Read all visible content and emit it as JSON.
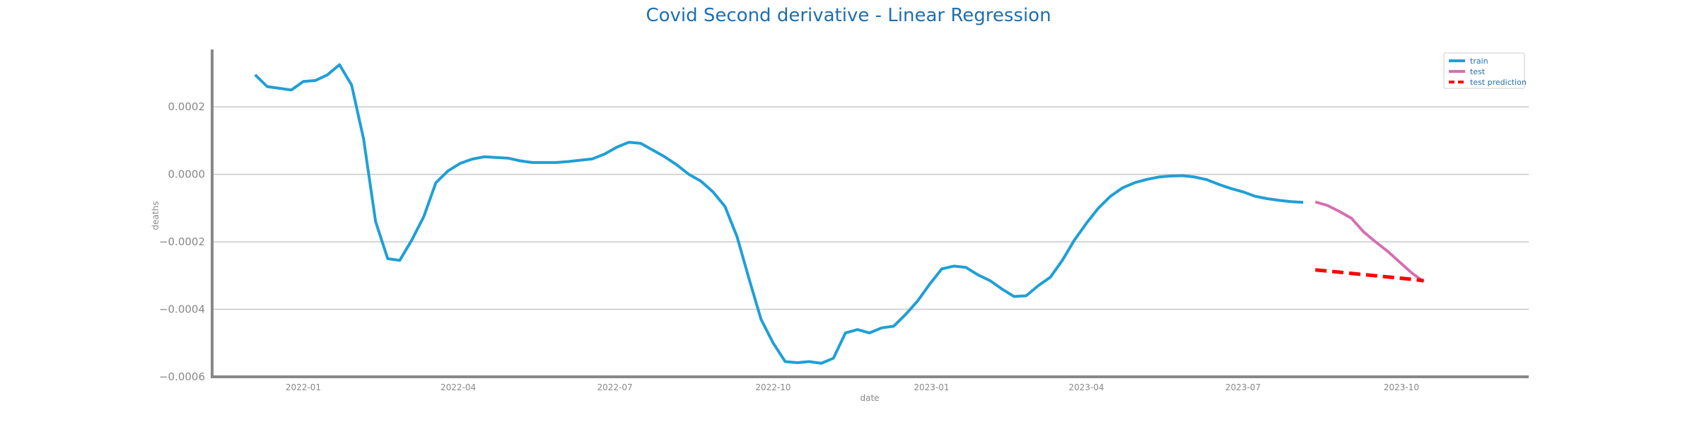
{
  "chart_data": {
    "type": "line",
    "title": "Covid Second derivative - Linear Regression",
    "xlabel": "date",
    "ylabel": "deaths",
    "x_ticks": [
      "2022-01",
      "2022-04",
      "2022-07",
      "2022-10",
      "2023-01",
      "2023-04",
      "2023-07",
      "2023-10"
    ],
    "y_ticks": [
      "0.0002",
      "0.0000",
      "−0.0002",
      "−0.0004",
      "−0.0006"
    ],
    "ylim": [
      -0.0006,
      0.00037
    ],
    "xlim": [
      "2021-11-09",
      "2023-12-14"
    ],
    "grid": "horizontal",
    "legend_position": "top-right",
    "colors": {
      "train": "#1f9fd6",
      "test": "#d66fb0",
      "test_prediction": "#ff0000",
      "title": "#1f6fb0",
      "axis_text": "#888888"
    },
    "series": [
      {
        "name": "train",
        "style": "solid",
        "points": [
          [
            "2021-12-04",
            0.000295
          ],
          [
            "2021-12-11",
            0.00026
          ],
          [
            "2021-12-18",
            0.000255
          ],
          [
            "2021-12-25",
            0.00025
          ],
          [
            "2022-01-01",
            0.000275
          ],
          [
            "2022-01-08",
            0.000278
          ],
          [
            "2022-01-15",
            0.000295
          ],
          [
            "2022-01-22",
            0.000325
          ],
          [
            "2022-01-29",
            0.000265
          ],
          [
            "2022-02-05",
            0.000105
          ],
          [
            "2022-02-12",
            -0.00014
          ],
          [
            "2022-02-19",
            -0.00025
          ],
          [
            "2022-02-26",
            -0.000255
          ],
          [
            "2022-03-05",
            -0.000195
          ],
          [
            "2022-03-12",
            -0.000125
          ],
          [
            "2022-03-19",
            -2.5e-05
          ],
          [
            "2022-03-26",
            1e-05
          ],
          [
            "2022-04-02",
            3.2e-05
          ],
          [
            "2022-04-09",
            4.5e-05
          ],
          [
            "2022-04-16",
            5.2e-05
          ],
          [
            "2022-04-23",
            5e-05
          ],
          [
            "2022-04-30",
            4.8e-05
          ],
          [
            "2022-05-07",
            4e-05
          ],
          [
            "2022-05-14",
            3.5e-05
          ],
          [
            "2022-05-21",
            3.5e-05
          ],
          [
            "2022-05-28",
            3.5e-05
          ],
          [
            "2022-06-04",
            3.8e-05
          ],
          [
            "2022-06-11",
            4.2e-05
          ],
          [
            "2022-06-18",
            4.6e-05
          ],
          [
            "2022-06-25",
            6e-05
          ],
          [
            "2022-07-02",
            8e-05
          ],
          [
            "2022-07-09",
            9.5e-05
          ],
          [
            "2022-07-16",
            9.2e-05
          ],
          [
            "2022-07-23",
            7.2e-05
          ],
          [
            "2022-07-30",
            5.2e-05
          ],
          [
            "2022-08-06",
            2.8e-05
          ],
          [
            "2022-08-13",
            0.0
          ],
          [
            "2022-08-20",
            -2e-05
          ],
          [
            "2022-08-27",
            -5.2e-05
          ],
          [
            "2022-09-03",
            -9.5e-05
          ],
          [
            "2022-09-10",
            -0.000185
          ],
          [
            "2022-09-17",
            -0.00031
          ],
          [
            "2022-09-24",
            -0.00043
          ],
          [
            "2022-10-01",
            -0.0005
          ],
          [
            "2022-10-08",
            -0.000555
          ],
          [
            "2022-10-15",
            -0.000558
          ],
          [
            "2022-10-22",
            -0.000555
          ],
          [
            "2022-10-29",
            -0.00056
          ],
          [
            "2022-11-05",
            -0.000545
          ],
          [
            "2022-11-12",
            -0.00047
          ],
          [
            "2022-11-19",
            -0.00046
          ],
          [
            "2022-11-26",
            -0.00047
          ],
          [
            "2022-12-03",
            -0.000455
          ],
          [
            "2022-12-10",
            -0.00045
          ],
          [
            "2022-12-17",
            -0.000415
          ],
          [
            "2022-12-24",
            -0.000375
          ],
          [
            "2022-12-31",
            -0.000325
          ],
          [
            "2023-01-07",
            -0.00028
          ],
          [
            "2023-01-14",
            -0.000272
          ],
          [
            "2023-01-21",
            -0.000276
          ],
          [
            "2023-01-28",
            -0.000298
          ],
          [
            "2023-02-04",
            -0.000315
          ],
          [
            "2023-02-11",
            -0.00034
          ],
          [
            "2023-02-18",
            -0.000362
          ],
          [
            "2023-02-25",
            -0.00036
          ],
          [
            "2023-03-04",
            -0.00033
          ],
          [
            "2023-03-11",
            -0.000305
          ],
          [
            "2023-03-18",
            -0.000255
          ],
          [
            "2023-03-25",
            -0.000195
          ],
          [
            "2023-04-01",
            -0.000145
          ],
          [
            "2023-04-08",
            -0.0001
          ],
          [
            "2023-04-15",
            -6.5e-05
          ],
          [
            "2023-04-22",
            -4e-05
          ],
          [
            "2023-04-29",
            -2.5e-05
          ],
          [
            "2023-05-06",
            -1.5e-05
          ],
          [
            "2023-05-13",
            -8e-06
          ],
          [
            "2023-05-20",
            -5e-06
          ],
          [
            "2023-05-27",
            -4e-06
          ],
          [
            "2023-06-03",
            -8e-06
          ],
          [
            "2023-06-10",
            -1.6e-05
          ],
          [
            "2023-06-17",
            -3e-05
          ],
          [
            "2023-06-24",
            -4.2e-05
          ],
          [
            "2023-07-01",
            -5.2e-05
          ],
          [
            "2023-07-08",
            -6.5e-05
          ],
          [
            "2023-07-15",
            -7.2e-05
          ],
          [
            "2023-07-22",
            -7.7e-05
          ],
          [
            "2023-07-29",
            -8.1e-05
          ],
          [
            "2023-08-05",
            -8.3e-05
          ]
        ]
      },
      {
        "name": "test",
        "style": "solid",
        "points": [
          [
            "2023-08-12",
            -8.2e-05
          ],
          [
            "2023-08-19",
            -9.2e-05
          ],
          [
            "2023-08-26",
            -0.00011
          ],
          [
            "2023-09-02",
            -0.00013
          ],
          [
            "2023-09-09",
            -0.00017
          ],
          [
            "2023-09-16",
            -0.0002
          ],
          [
            "2023-09-23",
            -0.000228
          ],
          [
            "2023-09-30",
            -0.00026
          ],
          [
            "2023-10-07",
            -0.000292
          ],
          [
            "2023-10-14",
            -0.000318
          ]
        ]
      },
      {
        "name": "test prediction",
        "style": "dashed",
        "points": [
          [
            "2023-08-12",
            -0.000283
          ],
          [
            "2023-08-26",
            -0.00029
          ],
          [
            "2023-09-09",
            -0.000297
          ],
          [
            "2023-09-23",
            -0.000304
          ],
          [
            "2023-10-07",
            -0.000311
          ],
          [
            "2023-10-14",
            -0.000315
          ]
        ]
      }
    ]
  }
}
